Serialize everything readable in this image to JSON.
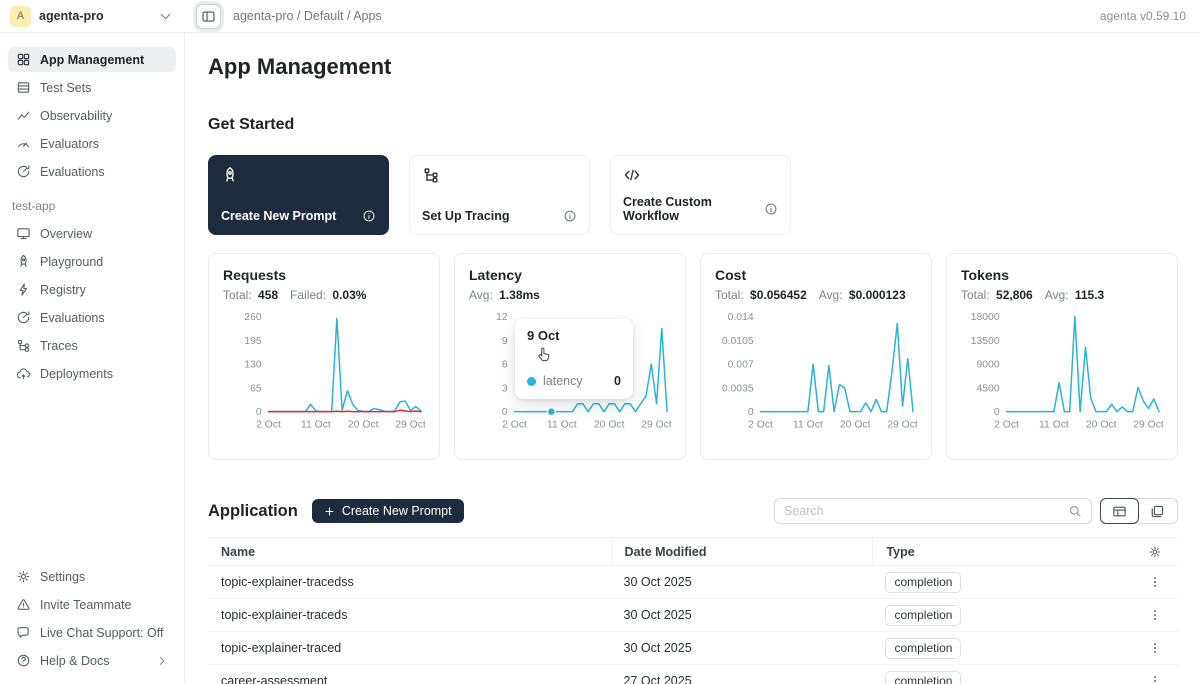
{
  "topbar": {
    "avatar_letter": "A",
    "workspace": "agenta-pro",
    "breadcrumb": "agenta-pro / Default / Apps",
    "version": "agenta v0.59.10"
  },
  "sidebar": {
    "main_items": [
      {
        "icon": "grid",
        "label": "App Management",
        "active": true
      },
      {
        "icon": "rows",
        "label": "Test Sets"
      },
      {
        "icon": "trend",
        "label": "Observability"
      },
      {
        "icon": "gauge",
        "label": "Evaluators"
      },
      {
        "icon": "evalcirc",
        "label": "Evaluations"
      }
    ],
    "project_label": "test-app",
    "project_items": [
      {
        "icon": "monitor",
        "label": "Overview"
      },
      {
        "icon": "rocket",
        "label": "Playground"
      },
      {
        "icon": "bolt",
        "label": "Registry"
      },
      {
        "icon": "evalcirc",
        "label": "Evaluations"
      },
      {
        "icon": "tree",
        "label": "Traces"
      },
      {
        "icon": "cloud",
        "label": "Deployments"
      }
    ],
    "footer_items": [
      {
        "icon": "gear",
        "label": "Settings"
      },
      {
        "icon": "alert",
        "label": "Invite Teammate"
      },
      {
        "icon": "chat",
        "label": "Live Chat Support: Off"
      },
      {
        "icon": "help",
        "label": "Help & Docs",
        "chevron": true
      }
    ]
  },
  "page": {
    "title": "App Management",
    "get_started_title": "Get Started",
    "cards": [
      {
        "icon": "rocket",
        "label": "Create New Prompt",
        "dark": true
      },
      {
        "icon": "tree",
        "label": "Set Up Tracing"
      },
      {
        "icon": "code",
        "label": "Create Custom Workflow"
      }
    ]
  },
  "colors": {
    "accent": "#27b4d8",
    "danger": "#f5222d",
    "dark": "#1c2c3e"
  },
  "chart_data": [
    {
      "type": "line",
      "title": "Requests",
      "stats": [
        {
          "label": "Total:",
          "value": "458"
        },
        {
          "label": "Failed:",
          "value": "0.03%"
        }
      ],
      "x_days": [
        2,
        3,
        4,
        5,
        6,
        7,
        8,
        9,
        10,
        11,
        12,
        13,
        14,
        15,
        16,
        17,
        18,
        19,
        20,
        21,
        22,
        23,
        24,
        25,
        26,
        27,
        28,
        29,
        30,
        31
      ],
      "xticks": [
        {
          "day": 2,
          "label": "2 Oct"
        },
        {
          "day": 11,
          "label": "11 Oct"
        },
        {
          "day": 20,
          "label": "20 Oct"
        },
        {
          "day": 29,
          "label": "29 Oct"
        }
      ],
      "ylim": [
        0,
        260
      ],
      "yticks": [
        {
          "v": 260,
          "label": "260"
        },
        {
          "v": 195,
          "label": "195"
        },
        {
          "v": 130,
          "label": "130"
        },
        {
          "v": 65,
          "label": "65"
        },
        {
          "v": 0,
          "label": "0"
        }
      ],
      "series": [
        {
          "name": "success",
          "color": "#27b4d8",
          "values": [
            0,
            0,
            0,
            0,
            0,
            0,
            0,
            0,
            20,
            2,
            0,
            0,
            0,
            255,
            4,
            58,
            20,
            3,
            1,
            0,
            8,
            6,
            1,
            0,
            2,
            27,
            29,
            3,
            14,
            1
          ]
        },
        {
          "name": "failed",
          "color": "#f5222d",
          "values": [
            0,
            0,
            0,
            0,
            0,
            0,
            0,
            0,
            0,
            0,
            0,
            0,
            0,
            1,
            0,
            1,
            0,
            0,
            0,
            0,
            0,
            0,
            0,
            0,
            0,
            4,
            2,
            0,
            2,
            0
          ]
        }
      ]
    },
    {
      "type": "line",
      "title": "Latency",
      "stats": [
        {
          "label": "Avg:",
          "value": "1.38ms"
        }
      ],
      "x_days": [
        2,
        3,
        4,
        5,
        6,
        7,
        8,
        9,
        10,
        11,
        12,
        13,
        14,
        15,
        16,
        17,
        18,
        19,
        20,
        21,
        22,
        23,
        24,
        25,
        26,
        27,
        28,
        29,
        30,
        31
      ],
      "xticks": [
        {
          "day": 2,
          "label": "2 Oct"
        },
        {
          "day": 11,
          "label": "11 Oct"
        },
        {
          "day": 20,
          "label": "20 Oct"
        },
        {
          "day": 29,
          "label": "29 Oct"
        }
      ],
      "ylim": [
        0,
        12
      ],
      "yticks": [
        {
          "v": 12,
          "label": "12"
        },
        {
          "v": 9,
          "label": "9"
        },
        {
          "v": 6,
          "label": "6"
        },
        {
          "v": 3,
          "label": "3"
        },
        {
          "v": 0,
          "label": "0"
        }
      ],
      "series": [
        {
          "name": "latency",
          "color": "#27b4d8",
          "values": [
            0,
            0,
            0,
            0,
            0,
            0,
            0,
            0,
            0,
            0,
            0,
            0,
            1,
            1,
            0,
            1,
            1,
            0,
            1,
            1,
            0,
            1,
            1,
            0,
            1,
            2,
            6,
            1,
            10.5,
            0
          ]
        }
      ],
      "marker": {
        "day": 9,
        "value": 0
      }
    },
    {
      "type": "line",
      "title": "Cost",
      "stats": [
        {
          "label": "Total:",
          "value": "$0.056452"
        },
        {
          "label": "Avg:",
          "value": "$0.000123"
        }
      ],
      "x_days": [
        2,
        3,
        4,
        5,
        6,
        7,
        8,
        9,
        10,
        11,
        12,
        13,
        14,
        15,
        16,
        17,
        18,
        19,
        20,
        21,
        22,
        23,
        24,
        25,
        26,
        27,
        28,
        29,
        30,
        31
      ],
      "xticks": [
        {
          "day": 2,
          "label": "2 Oct"
        },
        {
          "day": 11,
          "label": "11 Oct"
        },
        {
          "day": 20,
          "label": "20 Oct"
        },
        {
          "day": 29,
          "label": "29 Oct"
        }
      ],
      "ylim": [
        0,
        0.014
      ],
      "yticks": [
        {
          "v": 0.014,
          "label": "0.014"
        },
        {
          "v": 0.0105,
          "label": "0.0105"
        },
        {
          "v": 0.007,
          "label": "0.007"
        },
        {
          "v": 0.0035,
          "label": "0.0035"
        },
        {
          "v": 0,
          "label": "0"
        }
      ],
      "series": [
        {
          "name": "cost",
          "color": "#27b4d8",
          "values": [
            0,
            0,
            0,
            0,
            0,
            0,
            0,
            0,
            0,
            0,
            0.007,
            0,
            0,
            0.0068,
            0,
            0.004,
            0.0035,
            0,
            0,
            0,
            0.0013,
            0,
            0.0018,
            0,
            0,
            0.006,
            0.013,
            0.0008,
            0.0078,
            0
          ]
        }
      ]
    },
    {
      "type": "line",
      "title": "Tokens",
      "stats": [
        {
          "label": "Total:",
          "value": "52,806"
        },
        {
          "label": "Avg:",
          "value": "115.3"
        }
      ],
      "x_days": [
        2,
        3,
        4,
        5,
        6,
        7,
        8,
        9,
        10,
        11,
        12,
        13,
        14,
        15,
        16,
        17,
        18,
        19,
        20,
        21,
        22,
        23,
        24,
        25,
        26,
        27,
        28,
        29,
        30,
        31
      ],
      "xticks": [
        {
          "day": 2,
          "label": "2 Oct"
        },
        {
          "day": 11,
          "label": "11 Oct"
        },
        {
          "day": 20,
          "label": "20 Oct"
        },
        {
          "day": 29,
          "label": "29 Oct"
        }
      ],
      "ylim": [
        0,
        18000
      ],
      "yticks": [
        {
          "v": 18000,
          "label": "18000"
        },
        {
          "v": 13500,
          "label": "13500"
        },
        {
          "v": 9000,
          "label": "9000"
        },
        {
          "v": 4500,
          "label": "4500"
        },
        {
          "v": 0,
          "label": "0"
        }
      ],
      "series": [
        {
          "name": "tokens",
          "color": "#27b4d8",
          "values": [
            0,
            0,
            0,
            0,
            0,
            0,
            0,
            0,
            0,
            0,
            5500,
            0,
            0,
            18000,
            0,
            12200,
            2600,
            0,
            0,
            0,
            1400,
            0,
            900,
            0,
            0,
            4600,
            2000,
            600,
            2400,
            0
          ]
        }
      ]
    }
  ],
  "tooltip": {
    "date": "9 Oct",
    "series": "latency",
    "value": "0"
  },
  "application": {
    "title": "Application",
    "create_button": "Create New Prompt",
    "search_placeholder": "Search",
    "table": {
      "columns": [
        "Name",
        "Date Modified",
        "Type"
      ],
      "rows": [
        {
          "name": "topic-explainer-tracedss",
          "date": "30 Oct 2025",
          "type": "completion"
        },
        {
          "name": "topic-explainer-traceds",
          "date": "30 Oct 2025",
          "type": "completion"
        },
        {
          "name": "topic-explainer-traced",
          "date": "30 Oct 2025",
          "type": "completion"
        },
        {
          "name": "career-assessment",
          "date": "27 Oct 2025",
          "type": "completion"
        }
      ]
    }
  }
}
